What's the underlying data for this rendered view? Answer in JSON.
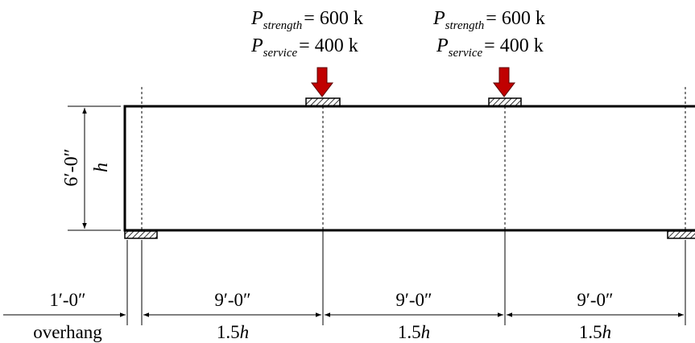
{
  "loads": [
    {
      "strength_symbol": "P",
      "strength_subscript": "strength",
      "strength_value": "= 600 k",
      "service_symbol": "P",
      "service_subscript": "service",
      "service_value": "= 400 k"
    },
    {
      "strength_symbol": "P",
      "strength_subscript": "strength",
      "strength_value": "= 600 k",
      "service_symbol": "P",
      "service_subscript": "service",
      "service_value": "= 400 k"
    }
  ],
  "height_dimension": {
    "value": "6′-0″",
    "symbol": "h"
  },
  "spans": [
    {
      "feet": "1′-0″",
      "label": "overhang"
    },
    {
      "feet": "9′-0″",
      "label": "1.5",
      "label_italic": "h"
    },
    {
      "feet": "9′-0″",
      "label": "1.5",
      "label_italic": "h"
    },
    {
      "feet": "9′-0″",
      "label": "1.5",
      "label_italic": "h"
    }
  ],
  "colors": {
    "load_arrow": "#c00000",
    "load_arrow_outline": "#5a0000",
    "line": "#000000"
  }
}
